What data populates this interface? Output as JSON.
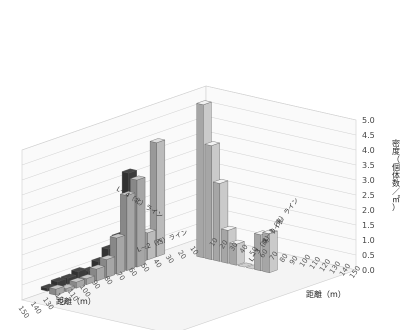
{
  "chart_data": {
    "type": "bar",
    "subtype": "3d-bar",
    "title": "",
    "y_axis": {
      "label": "密度（個体数／㎡）",
      "ylim": [
        0,
        5
      ],
      "ticks": [
        "0.0",
        "0.5",
        "1.0",
        "1.5",
        "2.0",
        "2.5",
        "3.0",
        "3.5",
        "4.0",
        "4.5",
        "5.0"
      ]
    },
    "x_axis_left": {
      "label": "距離（m）",
      "ticks": [
        "10",
        "20",
        "30",
        "40",
        "50",
        "60",
        "70",
        "80",
        "90",
        "100",
        "110",
        "120",
        "130",
        "140",
        "150"
      ]
    },
    "x_axis_right": {
      "label": "距離（m）",
      "ticks": [
        "10",
        "20",
        "30",
        "40",
        "50",
        "60",
        "70",
        "80",
        "90",
        "100",
        "110",
        "120",
        "130",
        "140",
        "150"
      ]
    },
    "series": [
      {
        "name": "L－1（東）ライン",
        "color": "#e6e6e6",
        "direction": "east",
        "values": [
          5.1,
          3.8,
          2.6,
          1.1,
          0.7,
          0.0,
          0.0,
          1.2,
          1.3
        ]
      },
      {
        "name": "L－2（西）ライン",
        "color": "#444444",
        "direction": "west",
        "values": [
          3.0,
          1.0,
          0.7,
          0.4,
          0.2,
          0.3,
          0.2,
          0.2,
          0.1
        ]
      },
      {
        "name": "L－3（南）ライン",
        "color": "#bdbdbd",
        "direction": "south",
        "values": [
          2.9,
          2.5,
          1.2,
          0.6,
          0.4,
          0.2,
          0.2,
          0.1,
          0.2
        ]
      },
      {
        "name": "L－4（北）ライン",
        "color": "#d4d4d4",
        "direction": "north",
        "values": [
          3.8,
          0.9,
          0.4,
          0.0,
          0.0,
          0.0,
          0.0,
          0.0,
          0.0
        ]
      }
    ],
    "grid": true,
    "legend": "inline labels on floor"
  }
}
